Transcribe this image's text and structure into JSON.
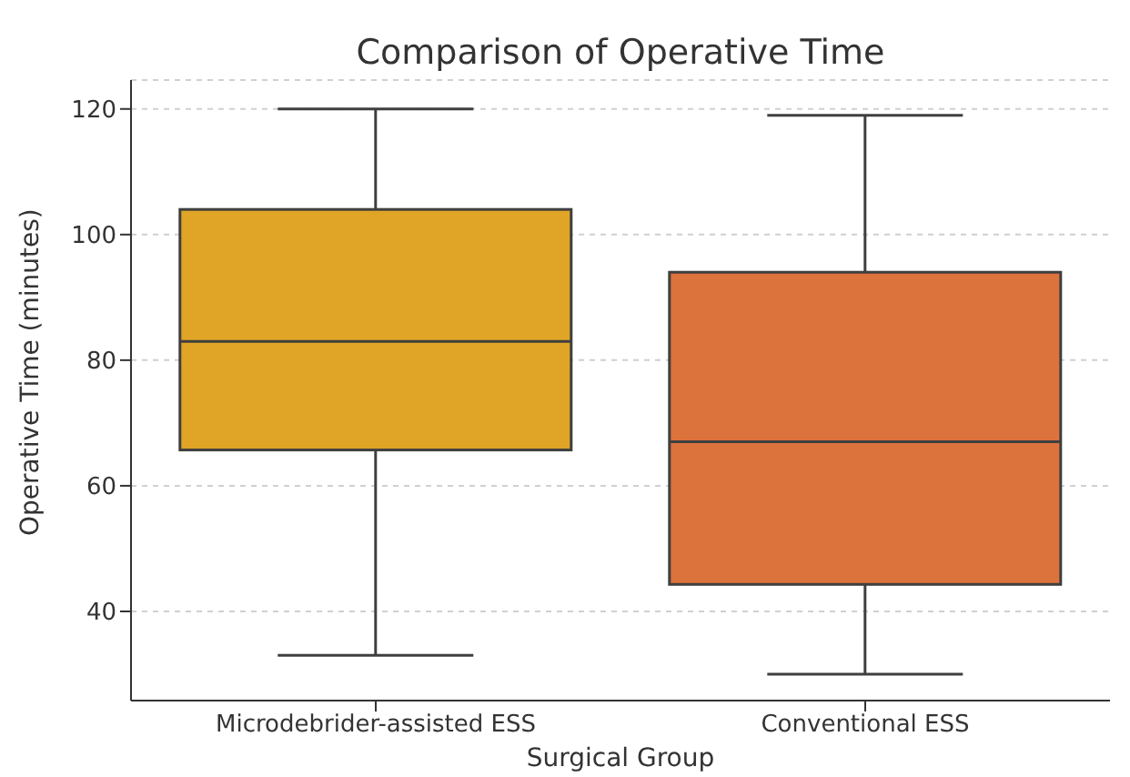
{
  "chart_data": {
    "type": "box",
    "title": "Comparison of Operative Time",
    "xlabel": "Surgical Group",
    "ylabel": "Operative Time (minutes)",
    "categories": [
      "Microdebrider-assisted ESS",
      "Conventional ESS"
    ],
    "colors": [
      "#e0a526",
      "#dc723c"
    ],
    "boxes": [
      {
        "low": 33,
        "q1": 65.7,
        "median": 83,
        "q3": 104,
        "high": 120
      },
      {
        "low": 30,
        "q1": 44.3,
        "median": 67,
        "q3": 94,
        "high": 119
      }
    ],
    "ylim": [
      25.8,
      124.6
    ],
    "yticks": [
      40,
      60,
      80,
      100,
      120
    ],
    "grid": "y"
  }
}
